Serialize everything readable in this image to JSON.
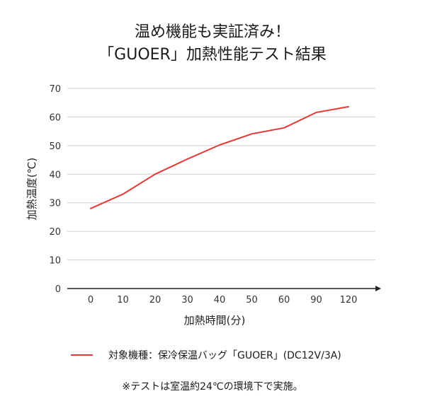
{
  "title": {
    "line1": "温め機能も実証済み！",
    "line2": "「GUOER」加熱性能テスト結果"
  },
  "chart_data": {
    "type": "line",
    "categories": [
      "0",
      "10",
      "20",
      "30",
      "40",
      "50",
      "60",
      "90",
      "120"
    ],
    "series": [
      {
        "name": "対象機種：保冷保温バッグ「GUOER」(DC12V/3A)",
        "values": [
          28,
          33,
          40,
          45.3,
          50.2,
          54.1,
          56.2,
          61.6,
          63.6
        ],
        "color": "#e53935"
      }
    ],
    "xlabel": "加熱時間(分)",
    "ylabel": "加熱温度(℃)",
    "ylim": [
      0,
      70
    ],
    "yticks": [
      "0",
      "10",
      "20",
      "30",
      "40",
      "50",
      "60",
      "70"
    ],
    "grid": true,
    "legend_position": "bottom"
  },
  "footnote": "※テストは室温約24℃の環境下で実施。",
  "colors": {
    "grid": "#cfcfcf",
    "axis": "#222222",
    "line": "#e53935"
  }
}
